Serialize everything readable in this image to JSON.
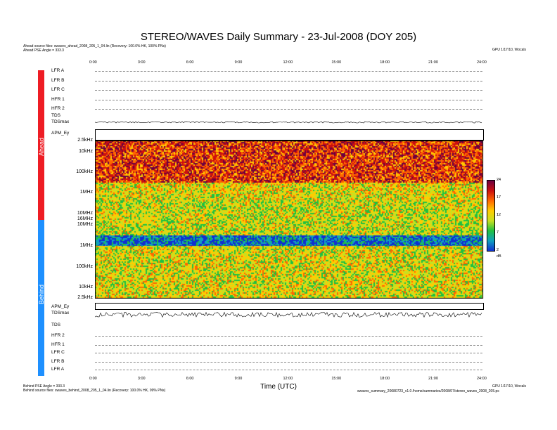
{
  "title": "STEREO/WAVES Daily Summary - 23-Jul-2008 (DOY 205)",
  "header_left": [
    "Ahead source files: swaves_ahead_2008_205_1_04.lin (Recovery: 100.0% HK, 100% PNs)",
    "Ahead PSE Angle = 333.3"
  ],
  "header_right": "GPU 1/17/10, Wocals",
  "footer_left": [
    "Behind PSE Angle = 333.3",
    "Behind source files: swaves_behind_2008_205_1_04.lin (Recovery: 100.0% HK, 99% PNs)"
  ],
  "footer_right": [
    "GPU 1/17/10, Wocals",
    "swaves_summary_20080723_v1.0 /home/summaries/2008/07/stereo_waves_2008_205.ps"
  ],
  "spacecraft": {
    "ahead": "Ahead",
    "behind": "Behind"
  },
  "xlabel": "Time (UTC)",
  "time_ticks": [
    "0:00",
    "3:00",
    "6:00",
    "9:00",
    "12:00",
    "15:00",
    "18:00",
    "21:00",
    "24:00"
  ],
  "ahead_rows": [
    "LFR A",
    "LFR B",
    "LFR C",
    "HFR 1",
    "HFR 2",
    "TDS",
    "TDSmax"
  ],
  "behind_rows": [
    "TDSmax",
    "TDS",
    "HFR 2",
    "HFR 1",
    "LFR C",
    "LFR B",
    "LFR A"
  ],
  "ahead_freq_labels": [
    "2.5kHz",
    "10kHz",
    "100kHz",
    "1MHz",
    "10MHz",
    "16MHz"
  ],
  "behind_freq_labels": [
    "10MHz",
    "1MHz",
    "100kHz",
    "10kHz",
    "2.5kHz"
  ],
  "apm_label": "APM_Ey",
  "colorbar": {
    "ticks": [
      "24",
      "17",
      "12",
      "7",
      "2"
    ],
    "unit": "dB",
    "colors": [
      "#6b0040",
      "#cc1010",
      "#ff6600",
      "#ffcc00",
      "#c8e020",
      "#20c040",
      "#10a0c0",
      "#1030d0"
    ]
  },
  "chart_data": {
    "type": "heatmap",
    "title": "STEREO/WAVES Daily Summary - 23-Jul-2008 (DOY 205)",
    "xlabel": "Time (UTC)",
    "x_range_hours": [
      0,
      24
    ],
    "panels": [
      {
        "spacecraft": "Ahead",
        "y_range": [
          "2.5kHz",
          "16MHz"
        ],
        "color_range_dB": [
          2,
          24
        ]
      },
      {
        "spacecraft": "Behind",
        "y_range": [
          "2.5kHz",
          "16MHz"
        ],
        "color_range_dB": [
          2,
          24
        ]
      }
    ]
  }
}
